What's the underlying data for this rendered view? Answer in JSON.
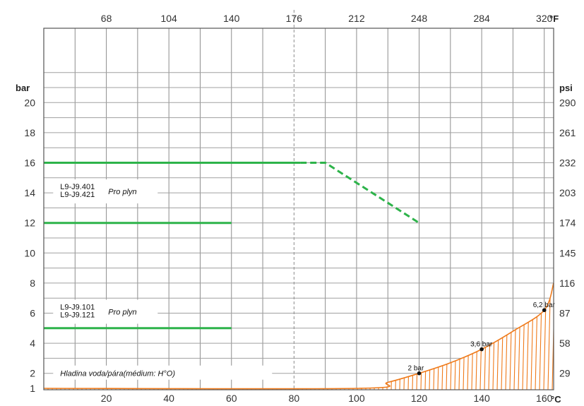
{
  "chart_data": {
    "type": "line",
    "x_unit_bottom": "°C",
    "x_unit_top": "°F",
    "y_unit_left": "bar",
    "y_unit_right": "psi",
    "x_range": [
      0,
      163
    ],
    "y_range": [
      1,
      22.5
    ],
    "bottom_ticks": [
      "20",
      "40",
      "60",
      "80",
      "100",
      "120",
      "140",
      "160"
    ],
    "top_ticks": [
      "68",
      "104",
      "140",
      "176",
      "212",
      "248",
      "284",
      "320"
    ],
    "left_ticks": [
      "1",
      "2",
      "4",
      "6",
      "8",
      "10",
      "12",
      "14",
      "16",
      "18",
      "20"
    ],
    "right_ticks": [
      "29",
      "58",
      "87",
      "116",
      "145",
      "174",
      "203",
      "232",
      "261",
      "290"
    ],
    "reference_temperature": 80,
    "series": [
      {
        "values": [
          [
            0,
            16
          ],
          [
            82,
            16
          ]
        ],
        "color": "#2db34a",
        "style": "solid"
      },
      {
        "values": [
          [
            82,
            16
          ],
          [
            90,
            16
          ],
          [
            120,
            12
          ]
        ],
        "color": "#2db34a",
        "style": "dashed"
      },
      {
        "values": [
          [
            0,
            12
          ],
          [
            60,
            12
          ]
        ],
        "color": "#2db34a",
        "style": "solid"
      },
      {
        "values": [
          [
            0,
            5
          ],
          [
            60,
            5
          ]
        ],
        "color": "#2db34a",
        "style": "solid"
      }
    ],
    "steam_curve": {
      "color": "#ef7a1a",
      "fill": "hatched",
      "points": [
        [
          0,
          1.0
        ],
        [
          100,
          1.0
        ],
        [
          110,
          1.4
        ],
        [
          120,
          2.0
        ],
        [
          130,
          2.7
        ],
        [
          140,
          3.6
        ],
        [
          150,
          4.8
        ],
        [
          160,
          6.2
        ],
        [
          163,
          8.0
        ]
      ]
    },
    "point_labels": [
      {
        "x": 120,
        "y": 2.0,
        "text": "2 bar"
      },
      {
        "x": 140,
        "y": 3.6,
        "text": "3,6 bar"
      },
      {
        "x": 160,
        "y": 6.2,
        "text": "6,2 bar"
      }
    ],
    "annotations": [
      {
        "lines": [
          "L9-J9.401",
          "L9-J9.421"
        ],
        "text": "Pro plyn",
        "x": 3,
        "y": 14
      },
      {
        "lines": [
          "L9-J9.101",
          "L9-J9.121"
        ],
        "text": "Pro plyn",
        "x": 3,
        "y": 6
      },
      {
        "lines": [],
        "text": "Hladina voda/pára(médium: H°O)",
        "x": 3,
        "y": 2
      }
    ],
    "grid": true
  }
}
